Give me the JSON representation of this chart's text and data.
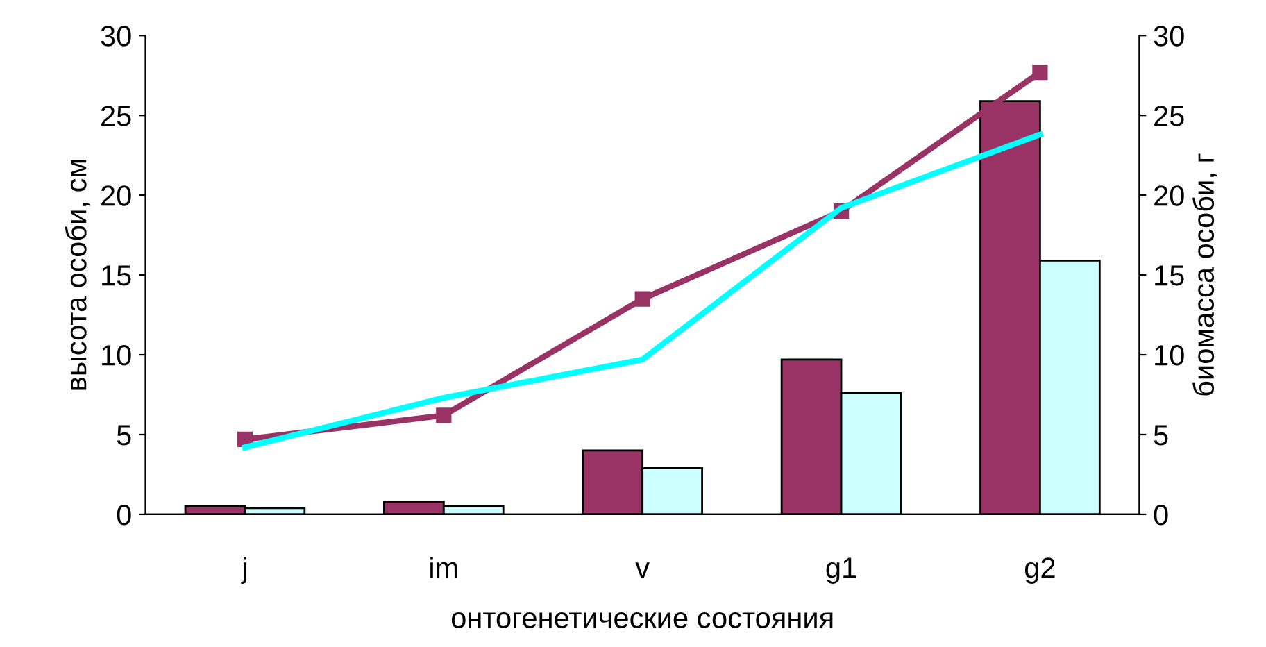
{
  "chart_data": {
    "type": "bar",
    "xlabel": "онтогенетические состояния",
    "ylabel": "высота особи, см",
    "y2label": "биомасса особи, г",
    "categories": [
      "j",
      "im",
      "v",
      "g1",
      "g2"
    ],
    "series": [
      {
        "color": "#993366",
        "values": [
          0.5,
          0.8,
          4.0,
          9.7,
          25.9
        ]
      },
      {
        "color": "#ccffff",
        "values": [
          0.4,
          0.5,
          2.9,
          7.6,
          15.9
        ]
      },
      {
        "type": "line",
        "color": "#993366",
        "marker": "square",
        "values": [
          4.7,
          6.2,
          13.5,
          19.0,
          27.7
        ]
      },
      {
        "type": "line",
        "color": "#00ffff",
        "marker": "none",
        "values": [
          4.2,
          7.3,
          9.7,
          19.2,
          23.8
        ]
      }
    ],
    "ylim": [
      0,
      30
    ],
    "yticks": [
      0,
      5,
      10,
      15,
      20,
      25,
      30
    ],
    "y2lim": [
      0,
      30
    ],
    "y2ticks": [
      0,
      5,
      10,
      15,
      20,
      25,
      30
    ],
    "grid": false,
    "legend": false
  }
}
